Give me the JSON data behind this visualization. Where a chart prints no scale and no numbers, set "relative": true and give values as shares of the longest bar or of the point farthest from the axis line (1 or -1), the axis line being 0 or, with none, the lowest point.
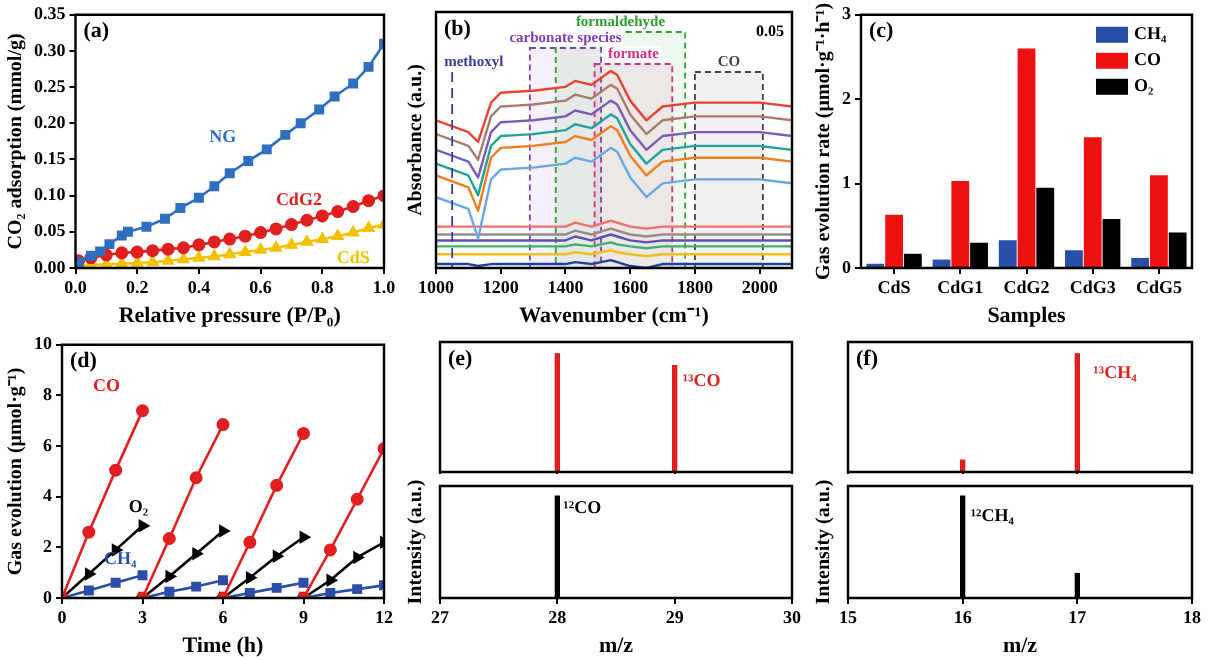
{
  "chart_data": [
    {
      "type": "line",
      "title": "(a)",
      "xlabel": "Relative pressure (P/P₀)",
      "ylabel": "CO₂ adsorption (mmol/g)",
      "xlim": [
        0,
        1
      ],
      "xticks": [
        {
          "value": 0,
          "label": "0.0"
        },
        0.2,
        0.4,
        0.6,
        0.8,
        {
          "value": 1,
          "label": "1.0"
        }
      ],
      "ylim": [
        0,
        0.35
      ],
      "yticks": [
        {
          "value": 0,
          "label": "0.00"
        },
        0.05,
        {
          "value": 0.1,
          "label": "0.10"
        },
        0.15,
        {
          "value": 0.2,
          "label": "0.20"
        },
        0.25,
        {
          "value": 0.3,
          "label": "0.30"
        },
        0.35
      ],
      "series": [
        {
          "name": "NG",
          "color": "#2f6fc0",
          "marker": "square",
          "x": [
            0.01,
            0.05,
            0.08,
            0.11,
            0.15,
            0.17,
            0.23,
            0.29,
            0.34,
            0.4,
            0.45,
            0.5,
            0.56,
            0.62,
            0.68,
            0.73,
            0.79,
            0.84,
            0.9,
            0.95,
            1.0
          ],
          "values": [
            0.008,
            0.017,
            0.023,
            0.033,
            0.045,
            0.05,
            0.057,
            0.068,
            0.083,
            0.097,
            0.113,
            0.131,
            0.148,
            0.164,
            0.184,
            0.2,
            0.219,
            0.237,
            0.255,
            0.278,
            0.31
          ]
        },
        {
          "name": "CdG2",
          "color": "#e02020",
          "marker": "circle",
          "x": [
            0.01,
            0.05,
            0.1,
            0.15,
            0.2,
            0.25,
            0.3,
            0.35,
            0.4,
            0.45,
            0.5,
            0.55,
            0.6,
            0.65,
            0.7,
            0.75,
            0.8,
            0.85,
            0.9,
            0.95,
            1.0
          ],
          "values": [
            0.01,
            0.014,
            0.018,
            0.021,
            0.022,
            0.024,
            0.026,
            0.028,
            0.032,
            0.036,
            0.04,
            0.044,
            0.049,
            0.054,
            0.06,
            0.066,
            0.072,
            0.078,
            0.085,
            0.093,
            0.1
          ]
        },
        {
          "name": "CdS",
          "color": "#f2c200",
          "marker": "triangle",
          "x": [
            0.01,
            0.05,
            0.1,
            0.15,
            0.2,
            0.25,
            0.3,
            0.35,
            0.4,
            0.45,
            0.5,
            0.55,
            0.6,
            0.65,
            0.7,
            0.75,
            0.8,
            0.85,
            0.9,
            0.95,
            1.0
          ],
          "values": [
            0.003,
            0.004,
            0.005,
            0.006,
            0.007,
            0.008,
            0.01,
            0.012,
            0.014,
            0.016,
            0.019,
            0.022,
            0.025,
            0.028,
            0.032,
            0.036,
            0.04,
            0.044,
            0.049,
            0.055,
            0.06
          ]
        }
      ]
    },
    {
      "type": "line",
      "title": "(b)",
      "xlabel": "Wavenumber (cm⁻¹)",
      "ylabel": "Absorbance (a.u.)",
      "relative": true,
      "marker": "none",
      "xlim": [
        1000,
        2100
      ],
      "xticks": [
        1000,
        1200,
        1400,
        1600,
        1800,
        2000
      ],
      "annotations": [
        "0.05"
      ],
      "ref_lines": [
        {
          "axis": "x",
          "value": 1050,
          "label": "methoxyl",
          "color": "#3b3b9e",
          "line_style": "dashed"
        }
      ],
      "bands": [
        {
          "axis": "x",
          "from": 1290,
          "to": 1510,
          "label": "carbonate species",
          "color": "#8040b0"
        },
        {
          "axis": "x",
          "from": 1370,
          "to": 1770,
          "label": "formaldehyde",
          "color": "#30a030"
        },
        {
          "axis": "x",
          "from": 1490,
          "to": 1730,
          "label": "formate",
          "color": "#d03080"
        },
        {
          "axis": "x",
          "from": 1800,
          "to": 2010,
          "label": "CO",
          "color": "#404040"
        }
      ],
      "x": [
        1000,
        1100,
        1130,
        1170,
        1200,
        1300,
        1400,
        1430,
        1480,
        1540,
        1560,
        1600,
        1650,
        1700,
        1800,
        2000,
        2100
      ],
      "series": [
        {
          "color": "#e8412f",
          "values": [
            0.75,
            0.69,
            0.64,
            0.84,
            0.89,
            0.9,
            0.92,
            0.95,
            0.93,
            1.0,
            0.98,
            0.85,
            0.75,
            0.82,
            0.84,
            0.84,
            0.82
          ]
        },
        {
          "color": "#a67c6d",
          "values": [
            0.68,
            0.62,
            0.55,
            0.77,
            0.82,
            0.83,
            0.85,
            0.88,
            0.86,
            0.93,
            0.91,
            0.78,
            0.68,
            0.75,
            0.77,
            0.77,
            0.75
          ]
        },
        {
          "color": "#7a5bb5",
          "values": [
            0.6,
            0.54,
            0.46,
            0.69,
            0.74,
            0.75,
            0.77,
            0.8,
            0.78,
            0.85,
            0.83,
            0.7,
            0.6,
            0.67,
            0.69,
            0.69,
            0.67
          ]
        },
        {
          "color": "#22a39a",
          "values": [
            0.53,
            0.47,
            0.37,
            0.62,
            0.67,
            0.68,
            0.7,
            0.73,
            0.71,
            0.78,
            0.76,
            0.63,
            0.53,
            0.6,
            0.62,
            0.62,
            0.6
          ]
        },
        {
          "color": "#ef7d22",
          "values": [
            0.47,
            0.41,
            0.29,
            0.56,
            0.61,
            0.62,
            0.64,
            0.67,
            0.65,
            0.72,
            0.7,
            0.57,
            0.47,
            0.54,
            0.56,
            0.56,
            0.54
          ]
        },
        {
          "color": "#6aa7e0",
          "values": [
            0.36,
            0.3,
            0.15,
            0.45,
            0.5,
            0.51,
            0.53,
            0.56,
            0.54,
            0.61,
            0.59,
            0.46,
            0.36,
            0.43,
            0.45,
            0.45,
            0.43
          ]
        },
        {
          "color": "#f07070",
          "values": [
            0.21,
            0.21,
            0.21,
            0.21,
            0.21,
            0.21,
            0.21,
            0.23,
            0.21,
            0.24,
            0.23,
            0.21,
            0.2,
            0.21,
            0.21,
            0.21,
            0.21
          ]
        },
        {
          "color": "#9a8a8a",
          "values": [
            0.17,
            0.17,
            0.17,
            0.17,
            0.17,
            0.17,
            0.17,
            0.19,
            0.17,
            0.2,
            0.19,
            0.17,
            0.16,
            0.17,
            0.17,
            0.17,
            0.17
          ]
        },
        {
          "color": "#5d50b0",
          "values": [
            0.14,
            0.14,
            0.14,
            0.14,
            0.14,
            0.14,
            0.14,
            0.16,
            0.14,
            0.17,
            0.16,
            0.14,
            0.13,
            0.14,
            0.14,
            0.14,
            0.14
          ]
        },
        {
          "color": "#40b070",
          "values": [
            0.11,
            0.11,
            0.11,
            0.11,
            0.11,
            0.11,
            0.11,
            0.12,
            0.11,
            0.13,
            0.12,
            0.11,
            0.1,
            0.11,
            0.11,
            0.11,
            0.11
          ]
        },
        {
          "color": "#f0c020",
          "values": [
            0.07,
            0.07,
            0.07,
            0.07,
            0.07,
            0.07,
            0.07,
            0.08,
            0.07,
            0.09,
            0.08,
            0.07,
            0.06,
            0.07,
            0.07,
            0.07,
            0.07
          ]
        },
        {
          "color": "#2040a0",
          "values": [
            0.02,
            0.02,
            0.01,
            0.02,
            0.02,
            0.02,
            0.02,
            0.03,
            0.02,
            0.04,
            0.03,
            0.01,
            0.0,
            0.02,
            0.02,
            0.02,
            0.02
          ]
        }
      ]
    },
    {
      "type": "bar",
      "title": "(c)",
      "xlabel": "Samples",
      "ylabel": "Gas evolution rate (μmol·g⁻¹·h⁻¹)",
      "categories": [
        "CdS",
        "CdG1",
        "CdG2",
        "CdG3",
        "CdG5"
      ],
      "ylim": [
        0,
        3
      ],
      "yticks": [
        0,
        1,
        2,
        3
      ],
      "legend": "top right",
      "series": [
        {
          "name": "CH₄",
          "color": "#2a4ea8",
          "values": [
            0.05,
            0.1,
            0.33,
            0.21,
            0.12
          ]
        },
        {
          "name": "CO",
          "color": "#ee1111",
          "values": [
            0.63,
            1.03,
            2.6,
            1.55,
            1.1
          ]
        },
        {
          "name": "O₂",
          "color": "#000000",
          "values": [
            0.17,
            0.3,
            0.95,
            0.58,
            0.42
          ]
        }
      ]
    },
    {
      "type": "line",
      "title": "(d)",
      "xlabel": "Time (h)",
      "ylabel": "Gas evolution (μmol·g⁻¹)",
      "xlim": [
        0,
        12
      ],
      "xticks": [
        0,
        3,
        6,
        9,
        12
      ],
      "ylim": [
        0,
        10
      ],
      "yticks": [
        0,
        2,
        4,
        6,
        8,
        10
      ],
      "series": [
        {
          "name": "CO",
          "color": "#e02020",
          "marker": "circle",
          "x": [
            0,
            1,
            2,
            3
          ],
          "values": [
            0,
            2.6,
            5.05,
            7.4
          ]
        },
        {
          "color": "#e02020",
          "marker": "circle",
          "x": [
            3,
            4,
            5,
            6
          ],
          "values": [
            0,
            2.35,
            4.75,
            6.85
          ]
        },
        {
          "color": "#e02020",
          "marker": "circle",
          "x": [
            6,
            7,
            8,
            9
          ],
          "values": [
            0,
            2.2,
            4.45,
            6.5
          ]
        },
        {
          "color": "#e02020",
          "marker": "circle",
          "x": [
            9,
            10,
            11,
            12
          ],
          "values": [
            0,
            1.9,
            3.9,
            5.9
          ]
        },
        {
          "name": "O₂",
          "color": "#000000",
          "marker": "triangle",
          "x": [
            0,
            1,
            2,
            3
          ],
          "values": [
            0,
            0.95,
            1.9,
            2.85
          ]
        },
        {
          "color": "#000000",
          "marker": "triangle",
          "x": [
            3,
            4,
            5,
            6
          ],
          "values": [
            0,
            0.85,
            1.75,
            2.65
          ]
        },
        {
          "color": "#000000",
          "marker": "triangle",
          "x": [
            6,
            7,
            8,
            9
          ],
          "values": [
            0,
            0.8,
            1.65,
            2.4
          ]
        },
        {
          "color": "#000000",
          "marker": "triangle",
          "x": [
            9,
            10,
            11,
            12
          ],
          "values": [
            0,
            0.7,
            1.6,
            2.2
          ]
        },
        {
          "name": "CH₄",
          "color": "#2a4ea8",
          "marker": "square",
          "x": [
            0,
            1,
            2,
            3
          ],
          "values": [
            0,
            0.3,
            0.6,
            0.9
          ]
        },
        {
          "color": "#2a4ea8",
          "marker": "square",
          "x": [
            3,
            4,
            5,
            6
          ],
          "values": [
            0,
            0.25,
            0.45,
            0.7
          ]
        },
        {
          "color": "#2a4ea8",
          "marker": "square",
          "x": [
            6,
            7,
            8,
            9
          ],
          "values": [
            0,
            0.2,
            0.4,
            0.6
          ]
        },
        {
          "color": "#2a4ea8",
          "marker": "square",
          "x": [
            9,
            10,
            11,
            12
          ],
          "values": [
            0,
            0.2,
            0.35,
            0.5
          ]
        }
      ]
    },
    {
      "type": "bar",
      "title": "(e)",
      "relative": true,
      "tick_labels": false,
      "xlim": [
        27,
        30
      ],
      "xticks": [
        27,
        28,
        29,
        30
      ],
      "series": [
        {
          "name": "¹³CO",
          "color": "#e02020",
          "x": [
            28,
            29
          ],
          "values": [
            1.0,
            0.9
          ]
        }
      ]
    },
    {
      "type": "bar",
      "xlabel": "m/z",
      "ylabel": "Intensity (a.u.)",
      "relative": true,
      "tick_labels": "x",
      "xlim": [
        27,
        30
      ],
      "xticks": [
        27,
        28,
        29,
        30
      ],
      "series": [
        {
          "name": "¹²CO",
          "color": "#000000",
          "x": [
            28
          ],
          "values": [
            1.0
          ]
        }
      ]
    },
    {
      "type": "bar",
      "title": "(f)",
      "relative": true,
      "tick_labels": false,
      "xlim": [
        15,
        18
      ],
      "xticks": [
        15,
        16,
        17,
        18
      ],
      "series": [
        {
          "name": "¹³CH₄",
          "color": "#e02020",
          "x": [
            16,
            17
          ],
          "values": [
            0.1,
            1.0
          ]
        }
      ]
    },
    {
      "type": "bar",
      "xlabel": "m/z",
      "ylabel": "Intensity (a.u.)",
      "relative": true,
      "tick_labels": "x",
      "xlim": [
        15,
        18
      ],
      "xticks": [
        15,
        16,
        17,
        18
      ],
      "series": [
        {
          "name": "¹²CH₄",
          "color": "#000000",
          "x": [
            16,
            17
          ],
          "values": [
            1.0,
            0.24
          ]
        }
      ]
    }
  ]
}
